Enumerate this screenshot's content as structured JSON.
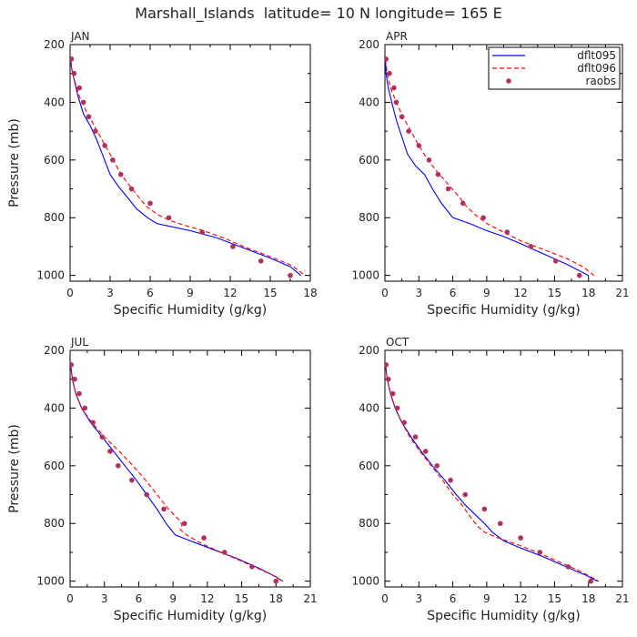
{
  "chart_data": {
    "title": "Marshall_Islands  latitude= 10 N longitude= 165 E",
    "legend": {
      "placement": "top-right of APR panel",
      "entries": [
        {
          "label": "dflt095",
          "color": "#0000ff",
          "style": "solid"
        },
        {
          "label": "dflt096",
          "color": "#ff0000",
          "style": "dashed"
        },
        {
          "label": "raobs",
          "color": "#b03060",
          "style": "dots"
        }
      ]
    },
    "panels": [
      {
        "type": "line",
        "label": "JAN",
        "xlabel": "Specific Humidity (g/kg)",
        "ylabel": "Pressure (mb)",
        "xlim": [
          0,
          18
        ],
        "ylim": [
          200,
          1020
        ],
        "xticks": [
          0,
          3,
          6,
          9,
          12,
          15,
          18
        ],
        "yticks": [
          200,
          400,
          600,
          800,
          1000
        ],
        "series": [
          {
            "name": "dflt095",
            "x": [
              0.05,
              0.1,
              0.3,
              0.6,
              1.0,
              1.5,
              2.0,
              2.5,
              3.0,
              3.6,
              4.3,
              5.0,
              5.8,
              6.5,
              7.5,
              9.0,
              11.0,
              13.0,
              15.0,
              16.5,
              17.3
            ],
            "y": [
              250,
              280,
              320,
              380,
              440,
              480,
              530,
              590,
              650,
              690,
              730,
              770,
              800,
              820,
              830,
              845,
              870,
              905,
              940,
              970,
              1000
            ]
          },
          {
            "name": "dflt096",
            "x": [
              0.05,
              0.1,
              0.3,
              0.7,
              1.2,
              1.8,
              2.4,
              3.0,
              3.7,
              4.3,
              5.0,
              5.7,
              6.6,
              7.5,
              8.5,
              10.0,
              11.5,
              13.0,
              15.0,
              16.6,
              17.6
            ],
            "y": [
              250,
              280,
              320,
              380,
              430,
              480,
              530,
              580,
              640,
              680,
              720,
              760,
              790,
              810,
              825,
              845,
              870,
              900,
              935,
              965,
              1000
            ]
          },
          {
            "name": "raobs",
            "x": [
              0.1,
              0.3,
              0.7,
              1.0,
              1.4,
              1.9,
              2.6,
              3.2,
              3.8,
              4.6,
              6.0,
              7.4,
              9.9,
              12.2,
              14.3,
              16.5
            ],
            "y": [
              250,
              300,
              350,
              400,
              450,
              500,
              550,
              600,
              650,
              700,
              750,
              800,
              850,
              900,
              950,
              1000
            ]
          }
        ]
      },
      {
        "type": "line",
        "label": "APR",
        "xlabel": "Specific Humidity (g/kg)",
        "ylabel": "",
        "xlim": [
          0,
          21
        ],
        "ylim": [
          200,
          1020
        ],
        "xticks": [
          0,
          3,
          6,
          9,
          12,
          15,
          18,
          21
        ],
        "yticks": [
          200,
          400,
          600,
          800,
          1000
        ],
        "series": [
          {
            "name": "dflt095",
            "x": [
              0.05,
              0.1,
              0.3,
              0.6,
              1.0,
              1.5,
              2.0,
              2.7,
              3.5,
              4.2,
              5.0,
              6.0,
              7.5,
              9.0,
              10.5,
              12.0,
              14.0,
              16.0,
              17.5,
              18.0
            ],
            "y": [
              250,
              300,
              350,
              400,
              460,
              520,
              580,
              620,
              650,
              700,
              750,
              800,
              820,
              845,
              865,
              890,
              925,
              960,
              990,
              1000
            ]
          },
          {
            "name": "dflt096",
            "x": [
              0.05,
              0.2,
              0.5,
              1.0,
              1.6,
              2.3,
              3.0,
              3.8,
              4.6,
              5.5,
              6.4,
              7.2,
              8.0,
              9.0,
              10.5,
              12.0,
              14.0,
              16.0,
              17.5,
              18.5
            ],
            "y": [
              250,
              300,
              350,
              400,
              450,
              500,
              550,
              600,
              640,
              680,
              720,
              760,
              790,
              820,
              850,
              880,
              910,
              940,
              970,
              1000
            ]
          },
          {
            "name": "raobs",
            "x": [
              0.1,
              0.4,
              0.8,
              1.0,
              1.5,
              2.1,
              3.0,
              3.9,
              4.7,
              5.6,
              6.9,
              8.7,
              10.8,
              12.9,
              15.1,
              17.2
            ],
            "y": [
              250,
              300,
              350,
              400,
              450,
              500,
              550,
              600,
              650,
              700,
              750,
              800,
              850,
              900,
              950,
              1000
            ]
          }
        ]
      },
      {
        "type": "line",
        "label": "JUL",
        "xlabel": "Specific Humidity (g/kg)",
        "ylabel": "Pressure (mb)",
        "xlim": [
          0,
          21
        ],
        "ylim": [
          200,
          1020
        ],
        "xticks": [
          0,
          3,
          6,
          9,
          12,
          15,
          18,
          21
        ],
        "yticks": [
          200,
          400,
          600,
          800,
          1000
        ],
        "series": [
          {
            "name": "dflt095",
            "x": [
              0.05,
              0.2,
              0.5,
              1.0,
              1.8,
              2.8,
              3.8,
              4.8,
              5.8,
              6.7,
              7.6,
              8.4,
              8.8,
              9.0,
              9.2,
              10.5,
              12.5,
              14.5,
              16.5,
              18.0,
              18.6
            ],
            "y": [
              250,
              300,
              350,
              400,
              450,
              500,
              550,
              600,
              650,
              700,
              750,
              800,
              820,
              830,
              840,
              860,
              890,
              920,
              955,
              985,
              1000
            ]
          },
          {
            "name": "dflt096",
            "x": [
              0.05,
              0.2,
              0.5,
              1.0,
              1.9,
              3.0,
              4.3,
              5.5,
              6.6,
              7.6,
              8.6,
              9.6,
              9.8,
              9.6,
              10.2,
              11.5,
              13.5,
              15.5,
              17.5,
              18.6
            ],
            "y": [
              250,
              300,
              350,
              400,
              450,
              500,
              550,
              600,
              650,
              700,
              750,
              790,
              805,
              820,
              840,
              870,
              905,
              940,
              975,
              1000
            ]
          },
          {
            "name": "raobs",
            "x": [
              0.1,
              0.4,
              0.8,
              1.3,
              2.0,
              2.8,
              3.5,
              4.2,
              5.4,
              6.7,
              8.2,
              10.0,
              11.7,
              13.5,
              15.9,
              18.0
            ],
            "y": [
              250,
              300,
              350,
              400,
              450,
              500,
              550,
              600,
              650,
              700,
              750,
              800,
              850,
              900,
              950,
              1000
            ]
          }
        ]
      },
      {
        "type": "line",
        "label": "OCT",
        "xlabel": "Specific Humidity (g/kg)",
        "ylabel": "",
        "xlim": [
          0,
          21
        ],
        "ylim": [
          200,
          1020
        ],
        "xticks": [
          0,
          3,
          6,
          9,
          12,
          15,
          18,
          21
        ],
        "yticks": [
          200,
          400,
          600,
          800,
          1000
        ],
        "series": [
          {
            "name": "dflt095",
            "x": [
              0.05,
              0.2,
              0.5,
              0.9,
              1.5,
              2.3,
              3.2,
              4.2,
              5.3,
              6.3,
              7.2,
              8.0,
              8.8,
              9.5,
              10.5,
              12.0,
              14.0,
              16.0,
              17.8,
              18.8
            ],
            "y": [
              250,
              300,
              350,
              400,
              450,
              500,
              550,
              600,
              650,
              700,
              740,
              770,
              800,
              830,
              860,
              885,
              915,
              950,
              980,
              1000
            ]
          },
          {
            "name": "dflt096",
            "x": [
              0.05,
              0.2,
              0.5,
              0.9,
              1.5,
              2.2,
              3.1,
              4.1,
              5.1,
              6.0,
              6.9,
              7.6,
              8.2,
              8.8,
              10.0,
              11.5,
              13.5,
              15.5,
              17.5,
              18.9
            ],
            "y": [
              250,
              300,
              350,
              400,
              450,
              500,
              550,
              600,
              650,
              700,
              740,
              780,
              810,
              830,
              850,
              870,
              900,
              935,
              970,
              1000
            ]
          },
          {
            "name": "raobs",
            "x": [
              0.1,
              0.3,
              0.7,
              1.1,
              1.7,
              2.7,
              3.6,
              4.6,
              5.8,
              7.1,
              8.8,
              10.2,
              12.0,
              13.7,
              16.2,
              18.2
            ],
            "y": [
              250,
              300,
              350,
              400,
              450,
              500,
              550,
              600,
              650,
              700,
              750,
              800,
              850,
              900,
              950,
              1000
            ]
          }
        ]
      }
    ]
  }
}
